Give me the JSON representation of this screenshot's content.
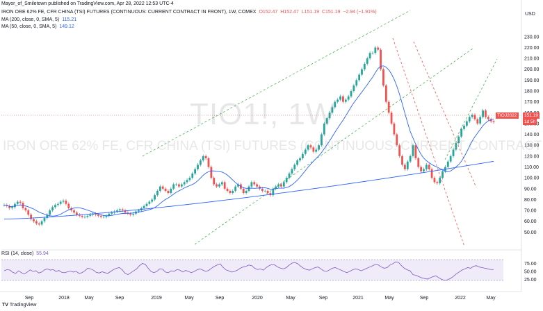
{
  "publisher": "Mayor_of_Smiletown published on TradingView.com, Apr 28, 2022 12:53 UTC-4",
  "header": {
    "title": "IRON ORE 62% FE, CFR CHINA (TSI) FUTURES (CONTINUOUS: CURRENT CONTRACT IN FRONT), 1W, COMEX",
    "open": "O152.47",
    "high": "H152.47",
    "low": "L151.19",
    "close": "C151.19",
    "change": "−2.94 (−1.91%)",
    "ma200": "MA (200, close, 0, SMA, 5)",
    "ma200_value": "115.21",
    "ma50": "MA (50, close, 0, SMA, 5)",
    "ma50_value": "149.12"
  },
  "watermark": {
    "symbol": "TIO1!, 1W",
    "name": "IRON ORE 62% FE, CFR CHINA (TSI) FUTURES (CONTINUOUS: CURRENT CONTRACT IN FRONT)"
  },
  "badges": {
    "symbol": "TIOJ2022",
    "price": "151.19",
    "countdown": "1d 5h"
  },
  "rsi": {
    "label": "RSI (14, close)",
    "value": "55.94",
    "ticks": [
      "75.00",
      "50.00",
      "25.00"
    ],
    "values": [
      52,
      56,
      54,
      47,
      44,
      52,
      46,
      42,
      48,
      55,
      50,
      52,
      45,
      48,
      55,
      58,
      54,
      56,
      50,
      53,
      47,
      46,
      49,
      51,
      48,
      50,
      44,
      46,
      52,
      60,
      58,
      54,
      47,
      45,
      49,
      46,
      44,
      50,
      56,
      60,
      62,
      55,
      44,
      40,
      46,
      52,
      58,
      68,
      75,
      72,
      60,
      50,
      46,
      50,
      58,
      57,
      48,
      46,
      52,
      50,
      56,
      54,
      48,
      53,
      50,
      46,
      50,
      55,
      58,
      54,
      50,
      53,
      60,
      66,
      70,
      74,
      63,
      55,
      52,
      48,
      50,
      54,
      60,
      64,
      66,
      70,
      68,
      60,
      56,
      58,
      54,
      62,
      68,
      72,
      70,
      64,
      60,
      58,
      62,
      70,
      76,
      78,
      74,
      66,
      60,
      56,
      54,
      58,
      62,
      64,
      58,
      52,
      50,
      55,
      60,
      62,
      58,
      54,
      50,
      46,
      50,
      55,
      58,
      56,
      52,
      56,
      60,
      64,
      68,
      72,
      70,
      64,
      60,
      62,
      70,
      74,
      80,
      78,
      68,
      60,
      55,
      52,
      40,
      38,
      34,
      30,
      28,
      26,
      30,
      34,
      36,
      30,
      25,
      22,
      24,
      28,
      34,
      42,
      48,
      54,
      58,
      62,
      60,
      66,
      68,
      64,
      62,
      60,
      58,
      56,
      55.94
    ],
    "colors": {
      "line": "#7e57c2",
      "band": "#7e57c2"
    }
  },
  "brand": "TradingView",
  "colors": {
    "up": "#26a69a",
    "down": "#ef5350",
    "ma50": "#2962ff",
    "ma200": "#2962ff",
    "trend": "#4caf50",
    "trend_down": "#ef5350"
  },
  "chart_data": {
    "type": "candlestick",
    "x_axis_labels": [
      "Sep",
      "2018",
      "May",
      "Sep",
      "2019",
      "May",
      "Sep",
      "2020",
      "May",
      "Sep",
      "2021",
      "May",
      "Sep",
      "2022",
      "May"
    ],
    "y_ticks": [
      50,
      60,
      70,
      80,
      90,
      100,
      110,
      120,
      130,
      140,
      150,
      160,
      170,
      180,
      190,
      200,
      210,
      220,
      230
    ],
    "y_unit": "USD",
    "ylim": [
      40,
      235
    ],
    "close_series": [
      75,
      74,
      72,
      73,
      76,
      78,
      77,
      72,
      70,
      66,
      62,
      60,
      58,
      57,
      60,
      63,
      66,
      70,
      73,
      75,
      76,
      78,
      79,
      76,
      72,
      70,
      68,
      66,
      65,
      64,
      64,
      65,
      66,
      67,
      66,
      65,
      64,
      64,
      65,
      67,
      68,
      69,
      70,
      71,
      70,
      68,
      67,
      66,
      67,
      69,
      70,
      72,
      74,
      76,
      78,
      80,
      84,
      88,
      92,
      90,
      88,
      86,
      90,
      94,
      94,
      92,
      94,
      96,
      98,
      100,
      104,
      108,
      112,
      116,
      120,
      118,
      110,
      100,
      94,
      92,
      94,
      96,
      90,
      88,
      86,
      88,
      92,
      94,
      90,
      86,
      88,
      92,
      96,
      94,
      92,
      90,
      88,
      88,
      86,
      84,
      90,
      92,
      94,
      92,
      96,
      100,
      104,
      108,
      112,
      116,
      118,
      122,
      126,
      130,
      128,
      124,
      126,
      130,
      140,
      150,
      155,
      160,
      165,
      170,
      172,
      175,
      170,
      172,
      175,
      180,
      185,
      190,
      195,
      200,
      205,
      210,
      215,
      215,
      220,
      218,
      200,
      185,
      170,
      160,
      150,
      140,
      130,
      120,
      112,
      108,
      115,
      120,
      130,
      118,
      110,
      106,
      108,
      112,
      108,
      100,
      96,
      95,
      100,
      106,
      110,
      115,
      120,
      126,
      132,
      138,
      145,
      148,
      152,
      156,
      158,
      154,
      150,
      156,
      162,
      156,
      154,
      152,
      151.19
    ],
    "ma200_series_start": 62,
    "ma200_series_end": 115.21,
    "ma50_end": 149.12,
    "last_price": 151.19
  }
}
